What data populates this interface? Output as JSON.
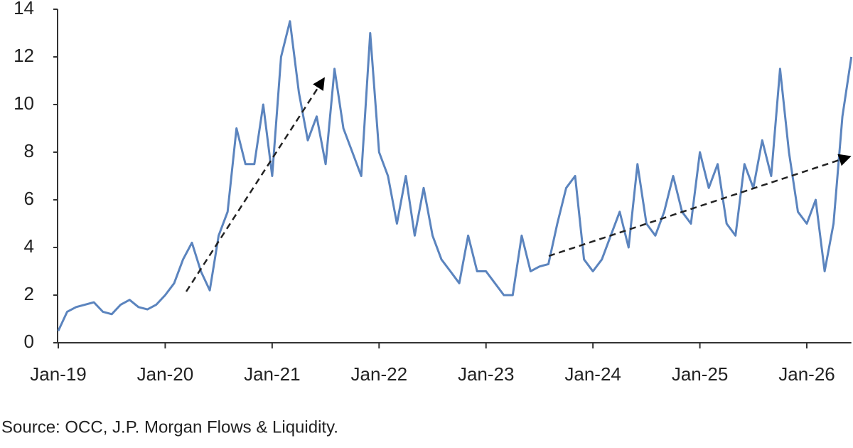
{
  "chart_data": {
    "type": "line",
    "source": "Source: OCC, J.P. Morgan Flows & Liquidity.",
    "color": "#5b84be",
    "x": [
      "2019-01",
      "2019-02",
      "2019-03",
      "2019-04",
      "2019-05",
      "2019-06",
      "2019-07",
      "2019-08",
      "2019-09",
      "2019-10",
      "2019-11",
      "2019-12",
      "2020-01",
      "2020-02",
      "2020-03",
      "2020-04",
      "2020-05",
      "2020-06",
      "2020-07",
      "2020-08",
      "2020-09",
      "2020-10",
      "2020-11",
      "2020-12",
      "2021-01",
      "2021-02",
      "2021-03",
      "2021-04",
      "2021-05",
      "2021-06",
      "2021-07",
      "2021-08",
      "2021-09",
      "2021-10",
      "2021-11",
      "2021-12",
      "2022-01",
      "2022-02",
      "2022-03",
      "2022-04",
      "2022-05",
      "2022-06",
      "2022-07",
      "2022-08",
      "2022-09",
      "2022-10",
      "2022-11",
      "2022-12",
      "2023-01",
      "2023-02",
      "2023-03",
      "2023-04",
      "2023-05",
      "2023-06",
      "2023-07",
      "2023-08",
      "2023-09",
      "2023-10",
      "2023-11",
      "2023-12",
      "2024-01",
      "2024-02",
      "2024-03",
      "2024-04",
      "2024-05",
      "2024-06",
      "2024-07",
      "2024-08",
      "2024-09",
      "2024-10",
      "2024-11",
      "2024-12",
      "2025-01",
      "2025-02",
      "2025-03",
      "2025-04",
      "2025-05",
      "2025-06",
      "2025-07",
      "2025-08",
      "2025-09",
      "2025-10",
      "2025-11",
      "2025-12",
      "2026-01",
      "2026-02",
      "2026-03",
      "2026-04",
      "2026-05",
      "2026-06"
    ],
    "values": [
      0.5,
      1.3,
      1.5,
      1.6,
      1.7,
      1.3,
      1.2,
      1.6,
      1.8,
      1.5,
      1.4,
      1.6,
      2.0,
      2.5,
      3.5,
      4.2,
      3.0,
      2.2,
      4.5,
      5.5,
      9.0,
      7.5,
      7.5,
      10.0,
      7.0,
      12.0,
      13.5,
      10.5,
      8.5,
      9.5,
      7.5,
      11.5,
      9.0,
      8.0,
      7.0,
      13.0,
      8.0,
      7.0,
      5.0,
      7.0,
      4.5,
      6.5,
      4.5,
      3.5,
      3.0,
      2.5,
      4.5,
      3.0,
      3.0,
      2.5,
      2.0,
      2.0,
      4.5,
      3.0,
      3.2,
      3.3,
      5.0,
      6.5,
      7.0,
      3.5,
      3.0,
      3.5,
      4.5,
      5.5,
      4.0,
      7.5,
      5.0,
      4.5,
      5.5,
      7.0,
      5.5,
      5.0,
      8.0,
      6.5,
      7.5,
      5.0,
      4.5,
      7.5,
      6.5,
      8.5,
      7.0,
      11.5,
      8.0,
      5.5,
      5.0,
      6.0,
      3.0,
      5.0,
      9.5,
      12.0
    ],
    "xlim": [
      "2019-01",
      "2026-06"
    ],
    "xticks": [
      {
        "value": "2019-01",
        "label": "Jan-19"
      },
      {
        "value": "2020-01",
        "label": "Jan-20"
      },
      {
        "value": "2021-01",
        "label": "Jan-21"
      },
      {
        "value": "2022-01",
        "label": "Jan-22"
      },
      {
        "value": "2023-01",
        "label": "Jan-23"
      },
      {
        "value": "2024-01",
        "label": "Jan-24"
      },
      {
        "value": "2025-01",
        "label": "Jan-25"
      },
      {
        "value": "2026-01",
        "label": "Jan-26"
      }
    ],
    "ylim": [
      0,
      14
    ],
    "yticks": [
      0,
      2,
      4,
      6,
      8,
      10,
      12,
      14
    ]
  }
}
